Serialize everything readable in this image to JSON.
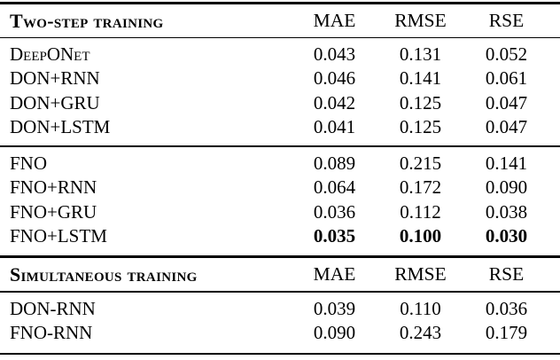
{
  "page": {
    "background_color": "#ffffff",
    "text_color": "#000000",
    "rule_color": "#000000"
  },
  "chart_data": {
    "type": "table",
    "sections": [
      {
        "title": "Two-step training",
        "columns": [
          "MAE",
          "RMSE",
          "RSE"
        ],
        "rows": [
          {
            "model": "DeepONet",
            "MAE": 0.043,
            "RMSE": 0.131,
            "RSE": 0.052
          },
          {
            "model": "DON+RNN",
            "MAE": 0.046,
            "RMSE": 0.141,
            "RSE": 0.061
          },
          {
            "model": "DON+GRU",
            "MAE": 0.042,
            "RMSE": 0.125,
            "RSE": 0.047
          },
          {
            "model": "DON+LSTM",
            "MAE": 0.041,
            "RMSE": 0.125,
            "RSE": 0.047
          },
          {
            "model": "FNO",
            "MAE": 0.089,
            "RMSE": 0.215,
            "RSE": 0.141
          },
          {
            "model": "FNO+RNN",
            "MAE": 0.064,
            "RMSE": 0.172,
            "RSE": 0.09
          },
          {
            "model": "FNO+GRU",
            "MAE": 0.036,
            "RMSE": 0.112,
            "RSE": 0.038
          },
          {
            "model": "FNO+LSTM",
            "MAE": 0.035,
            "RMSE": 0.1,
            "RSE": 0.03,
            "bold": true
          }
        ]
      },
      {
        "title": "Simultaneous training",
        "columns": [
          "MAE",
          "RMSE",
          "RSE"
        ],
        "rows": [
          {
            "model": "DON-RNN",
            "MAE": 0.039,
            "RMSE": 0.11,
            "RSE": 0.036
          },
          {
            "model": "FNO-RNN",
            "MAE": 0.09,
            "RMSE": 0.243,
            "RSE": 0.179
          }
        ]
      }
    ]
  },
  "table1": {
    "title": "Two-step training",
    "columns": [
      "MAE",
      "RMSE",
      "RSE"
    ],
    "group_don": [
      {
        "label": "DeepONet",
        "values": [
          "0.043",
          "0.131",
          "0.052"
        ]
      },
      {
        "label": "DON+RNN",
        "values": [
          "0.046",
          "0.141",
          "0.061"
        ]
      },
      {
        "label": "DON+GRU",
        "values": [
          "0.042",
          "0.125",
          "0.047"
        ]
      },
      {
        "label": "DON+LSTM",
        "values": [
          "0.041",
          "0.125",
          "0.047"
        ]
      }
    ],
    "group_fno": [
      {
        "label": "FNO",
        "values": [
          "0.089",
          "0.215",
          "0.141"
        ]
      },
      {
        "label": "FNO+RNN",
        "values": [
          "0.064",
          "0.172",
          "0.090"
        ]
      },
      {
        "label": "FNO+GRU",
        "values": [
          "0.036",
          "0.112",
          "0.038"
        ]
      },
      {
        "label": "FNO+LSTM",
        "values": [
          "0.035",
          "0.100",
          "0.030"
        ]
      }
    ]
  },
  "table2": {
    "title": "Simultaneous training",
    "columns": [
      "MAE",
      "RMSE",
      "RSE"
    ],
    "rows": [
      {
        "label": "DON-RNN",
        "values": [
          "0.039",
          "0.110",
          "0.036"
        ]
      },
      {
        "label": "FNO-RNN",
        "values": [
          "0.090",
          "0.243",
          "0.179"
        ]
      }
    ]
  }
}
